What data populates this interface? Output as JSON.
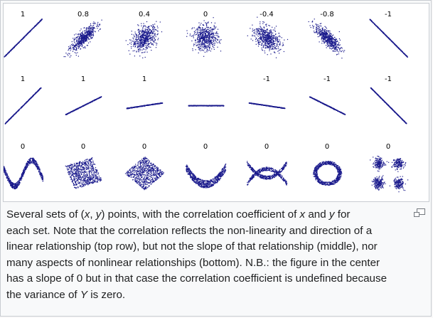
{
  "figure": {
    "rows": [
      {
        "labels": [
          "1",
          "0.8",
          "0.4",
          "0",
          "-0.4",
          "-0.8",
          "-1"
        ],
        "kind": "correlation",
        "params": [
          1,
          0.8,
          0.4,
          0,
          -0.4,
          -0.8,
          -1
        ]
      },
      {
        "labels": [
          "1",
          "1",
          "1",
          "",
          "-1",
          "-1",
          "-1"
        ],
        "kind": "slope",
        "params": [
          1,
          0.5,
          0.15,
          0,
          -0.15,
          -0.5,
          -1
        ]
      },
      {
        "labels": [
          "0",
          "0",
          "0",
          "0",
          "0",
          "0",
          "0"
        ],
        "kind": "nonlinear",
        "params": [
          "wave",
          "rotated-square",
          "diamond",
          "parabola",
          "x-shape",
          "ring",
          "four-clusters"
        ]
      }
    ],
    "point_color": "#1a1a8c"
  },
  "caption": {
    "line1": "Several sets of (x, y) points, with the correlation coefficient of x and y for",
    "line2": "each set. Note that the correlation reflects the non-linearity and direction of a",
    "line3": "linear relationship (top row), but not the slope of that relationship (middle), nor",
    "line4": "many aspects of nonlinear relationships (bottom). N.B.: the figure in the center",
    "line5": "has a slope of 0 but in that case the correlation coefficient is undefined because",
    "line6": "the variance of Y is zero."
  },
  "icons": {
    "enlarge": "magnify-clip-icon"
  }
}
